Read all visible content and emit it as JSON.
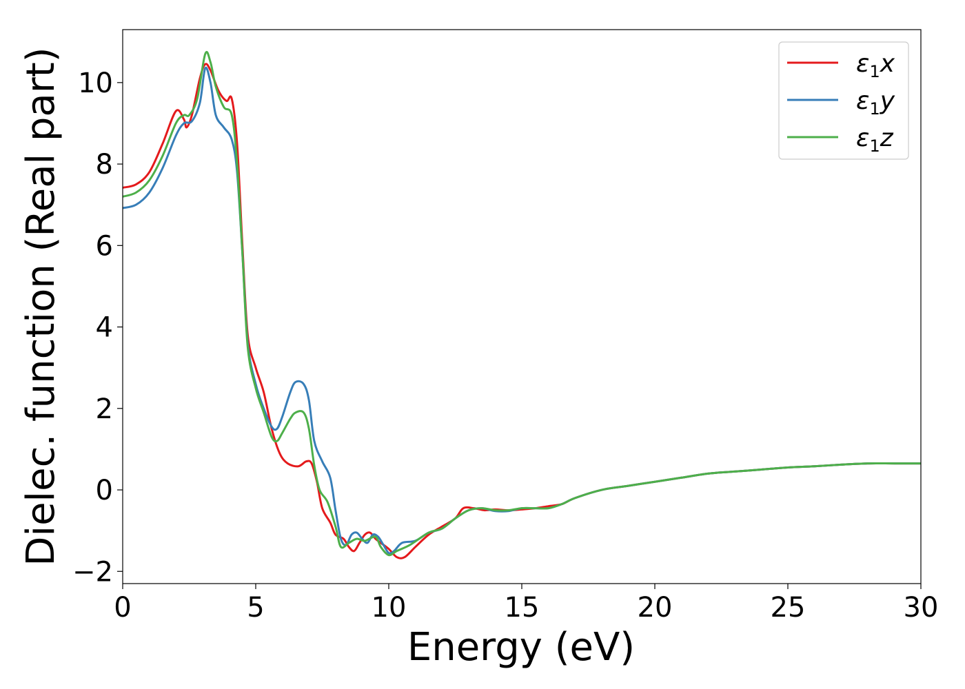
{
  "chart_data": {
    "type": "line",
    "title": "",
    "xlabel": "Energy (eV)",
    "ylabel": "Dielec. function (Real part)",
    "xlim": [
      0,
      30
    ],
    "ylim": [
      -2.3,
      11.3
    ],
    "xticks": [
      0,
      5,
      10,
      15,
      20,
      25,
      30
    ],
    "yticks": [
      -2,
      0,
      2,
      4,
      6,
      8,
      10
    ],
    "ytick_labels": [
      "−2",
      "0",
      "2",
      "4",
      "6",
      "8",
      "10"
    ],
    "grid": false,
    "legend_position": "top-right",
    "legend_entries": [
      {
        "base": "ε",
        "sub": "1",
        "axis": "x",
        "color": "#e41a1c"
      },
      {
        "base": "ε",
        "sub": "1",
        "axis": "y",
        "color": "#377eb8"
      },
      {
        "base": "ε",
        "sub": "1",
        "axis": "z",
        "color": "#4daf4a"
      }
    ],
    "series": [
      {
        "color": "#e41a1c",
        "points": [
          [
            0,
            7.42
          ],
          [
            0.5,
            7.5
          ],
          [
            1,
            7.8
          ],
          [
            1.5,
            8.5
          ],
          [
            2,
            9.3
          ],
          [
            2.3,
            9.1
          ],
          [
            2.4,
            8.9
          ],
          [
            2.6,
            9.2
          ],
          [
            2.9,
            10.1
          ],
          [
            3.1,
            10.45
          ],
          [
            3.3,
            10.3
          ],
          [
            3.6,
            9.8
          ],
          [
            3.9,
            9.55
          ],
          [
            4.1,
            9.6
          ],
          [
            4.3,
            8.5
          ],
          [
            4.5,
            6.0
          ],
          [
            4.7,
            3.8
          ],
          [
            5.0,
            3.0
          ],
          [
            5.3,
            2.4
          ],
          [
            5.6,
            1.5
          ],
          [
            5.9,
            0.9
          ],
          [
            6.2,
            0.65
          ],
          [
            6.6,
            0.58
          ],
          [
            6.9,
            0.7
          ],
          [
            7.1,
            0.65
          ],
          [
            7.3,
            0.2
          ],
          [
            7.5,
            -0.45
          ],
          [
            7.8,
            -0.8
          ],
          [
            8.0,
            -1.1
          ],
          [
            8.3,
            -1.2
          ],
          [
            8.5,
            -1.4
          ],
          [
            8.7,
            -1.5
          ],
          [
            8.9,
            -1.3
          ],
          [
            9.1,
            -1.1
          ],
          [
            9.3,
            -1.05
          ],
          [
            9.5,
            -1.2
          ],
          [
            9.7,
            -1.3
          ],
          [
            10.0,
            -1.45
          ],
          [
            10.3,
            -1.65
          ],
          [
            10.6,
            -1.65
          ],
          [
            11.0,
            -1.4
          ],
          [
            11.5,
            -1.1
          ],
          [
            12.0,
            -0.9
          ],
          [
            12.5,
            -0.7
          ],
          [
            12.8,
            -0.45
          ],
          [
            13.2,
            -0.45
          ],
          [
            13.6,
            -0.5
          ],
          [
            14.0,
            -0.48
          ],
          [
            14.5,
            -0.5
          ],
          [
            15.0,
            -0.48
          ],
          [
            15.5,
            -0.45
          ],
          [
            16.0,
            -0.4
          ],
          [
            16.5,
            -0.35
          ],
          [
            17.0,
            -0.2
          ],
          [
            18.0,
            0.0
          ],
          [
            19.0,
            0.1
          ],
          [
            20.0,
            0.2
          ],
          [
            21.0,
            0.3
          ],
          [
            22.0,
            0.4
          ],
          [
            23.0,
            0.45
          ],
          [
            24.0,
            0.5
          ],
          [
            25.0,
            0.55
          ],
          [
            26.0,
            0.58
          ],
          [
            27.0,
            0.62
          ],
          [
            28.0,
            0.65
          ],
          [
            29.0,
            0.65
          ],
          [
            30.0,
            0.65
          ]
        ]
      },
      {
        "color": "#377eb8",
        "points": [
          [
            0,
            6.92
          ],
          [
            0.5,
            7.0
          ],
          [
            1,
            7.3
          ],
          [
            1.5,
            7.9
          ],
          [
            2,
            8.7
          ],
          [
            2.3,
            9.0
          ],
          [
            2.6,
            9.05
          ],
          [
            2.9,
            9.5
          ],
          [
            3.1,
            10.35
          ],
          [
            3.3,
            10.0
          ],
          [
            3.5,
            9.2
          ],
          [
            3.8,
            8.9
          ],
          [
            4.1,
            8.6
          ],
          [
            4.3,
            7.8
          ],
          [
            4.5,
            5.8
          ],
          [
            4.7,
            3.6
          ],
          [
            5.0,
            2.6
          ],
          [
            5.3,
            2.0
          ],
          [
            5.6,
            1.55
          ],
          [
            5.8,
            1.5
          ],
          [
            6.0,
            1.8
          ],
          [
            6.3,
            2.4
          ],
          [
            6.5,
            2.65
          ],
          [
            6.8,
            2.6
          ],
          [
            7.0,
            2.2
          ],
          [
            7.2,
            1.2
          ],
          [
            7.5,
            0.7
          ],
          [
            7.8,
            0.3
          ],
          [
            8.0,
            -0.5
          ],
          [
            8.2,
            -1.2
          ],
          [
            8.4,
            -1.35
          ],
          [
            8.6,
            -1.1
          ],
          [
            8.8,
            -1.05
          ],
          [
            9.0,
            -1.2
          ],
          [
            9.2,
            -1.3
          ],
          [
            9.4,
            -1.1
          ],
          [
            9.6,
            -1.15
          ],
          [
            9.8,
            -1.35
          ],
          [
            10.0,
            -1.55
          ],
          [
            10.2,
            -1.5
          ],
          [
            10.5,
            -1.3
          ],
          [
            11.0,
            -1.25
          ],
          [
            11.5,
            -1.05
          ],
          [
            12.0,
            -0.95
          ],
          [
            12.5,
            -0.7
          ],
          [
            13.0,
            -0.5
          ],
          [
            13.5,
            -0.45
          ],
          [
            14.0,
            -0.52
          ],
          [
            14.5,
            -0.52
          ],
          [
            15.0,
            -0.45
          ],
          [
            15.5,
            -0.45
          ],
          [
            16.0,
            -0.45
          ],
          [
            16.5,
            -0.35
          ],
          [
            17.0,
            -0.2
          ],
          [
            18.0,
            0.0
          ],
          [
            19.0,
            0.1
          ],
          [
            20.0,
            0.2
          ],
          [
            21.0,
            0.3
          ],
          [
            22.0,
            0.4
          ],
          [
            23.0,
            0.45
          ],
          [
            24.0,
            0.5
          ],
          [
            25.0,
            0.55
          ],
          [
            26.0,
            0.58
          ],
          [
            27.0,
            0.62
          ],
          [
            28.0,
            0.65
          ],
          [
            29.0,
            0.65
          ],
          [
            30.0,
            0.65
          ]
        ]
      },
      {
        "color": "#4daf4a",
        "points": [
          [
            0,
            7.2
          ],
          [
            0.5,
            7.3
          ],
          [
            1,
            7.6
          ],
          [
            1.5,
            8.2
          ],
          [
            2,
            9.0
          ],
          [
            2.3,
            9.2
          ],
          [
            2.5,
            9.2
          ],
          [
            2.8,
            9.6
          ],
          [
            3.1,
            10.7
          ],
          [
            3.3,
            10.5
          ],
          [
            3.5,
            9.9
          ],
          [
            3.8,
            9.4
          ],
          [
            4.1,
            9.2
          ],
          [
            4.3,
            8.0
          ],
          [
            4.5,
            5.8
          ],
          [
            4.7,
            3.5
          ],
          [
            5.0,
            2.5
          ],
          [
            5.3,
            1.9
          ],
          [
            5.6,
            1.3
          ],
          [
            5.8,
            1.2
          ],
          [
            6.0,
            1.4
          ],
          [
            6.3,
            1.75
          ],
          [
            6.5,
            1.9
          ],
          [
            6.8,
            1.9
          ],
          [
            7.0,
            1.5
          ],
          [
            7.2,
            0.6
          ],
          [
            7.4,
            0.0
          ],
          [
            7.7,
            -0.3
          ],
          [
            8.0,
            -0.9
          ],
          [
            8.2,
            -1.4
          ],
          [
            8.5,
            -1.3
          ],
          [
            8.8,
            -1.2
          ],
          [
            9.1,
            -1.25
          ],
          [
            9.5,
            -1.15
          ],
          [
            9.7,
            -1.4
          ],
          [
            10.0,
            -1.6
          ],
          [
            10.3,
            -1.5
          ],
          [
            10.8,
            -1.35
          ],
          [
            11.5,
            -1.05
          ],
          [
            12.0,
            -0.95
          ],
          [
            12.5,
            -0.7
          ],
          [
            13.0,
            -0.5
          ],
          [
            13.5,
            -0.45
          ],
          [
            14.0,
            -0.5
          ],
          [
            14.5,
            -0.5
          ],
          [
            15.0,
            -0.45
          ],
          [
            15.5,
            -0.45
          ],
          [
            16.0,
            -0.45
          ],
          [
            16.5,
            -0.35
          ],
          [
            17.0,
            -0.2
          ],
          [
            18.0,
            0.0
          ],
          [
            19.0,
            0.1
          ],
          [
            20.0,
            0.2
          ],
          [
            21.0,
            0.3
          ],
          [
            22.0,
            0.4
          ],
          [
            23.0,
            0.45
          ],
          [
            24.0,
            0.5
          ],
          [
            25.0,
            0.55
          ],
          [
            26.0,
            0.58
          ],
          [
            27.0,
            0.62
          ],
          [
            28.0,
            0.65
          ],
          [
            29.0,
            0.65
          ],
          [
            30.0,
            0.65
          ]
        ]
      }
    ]
  }
}
